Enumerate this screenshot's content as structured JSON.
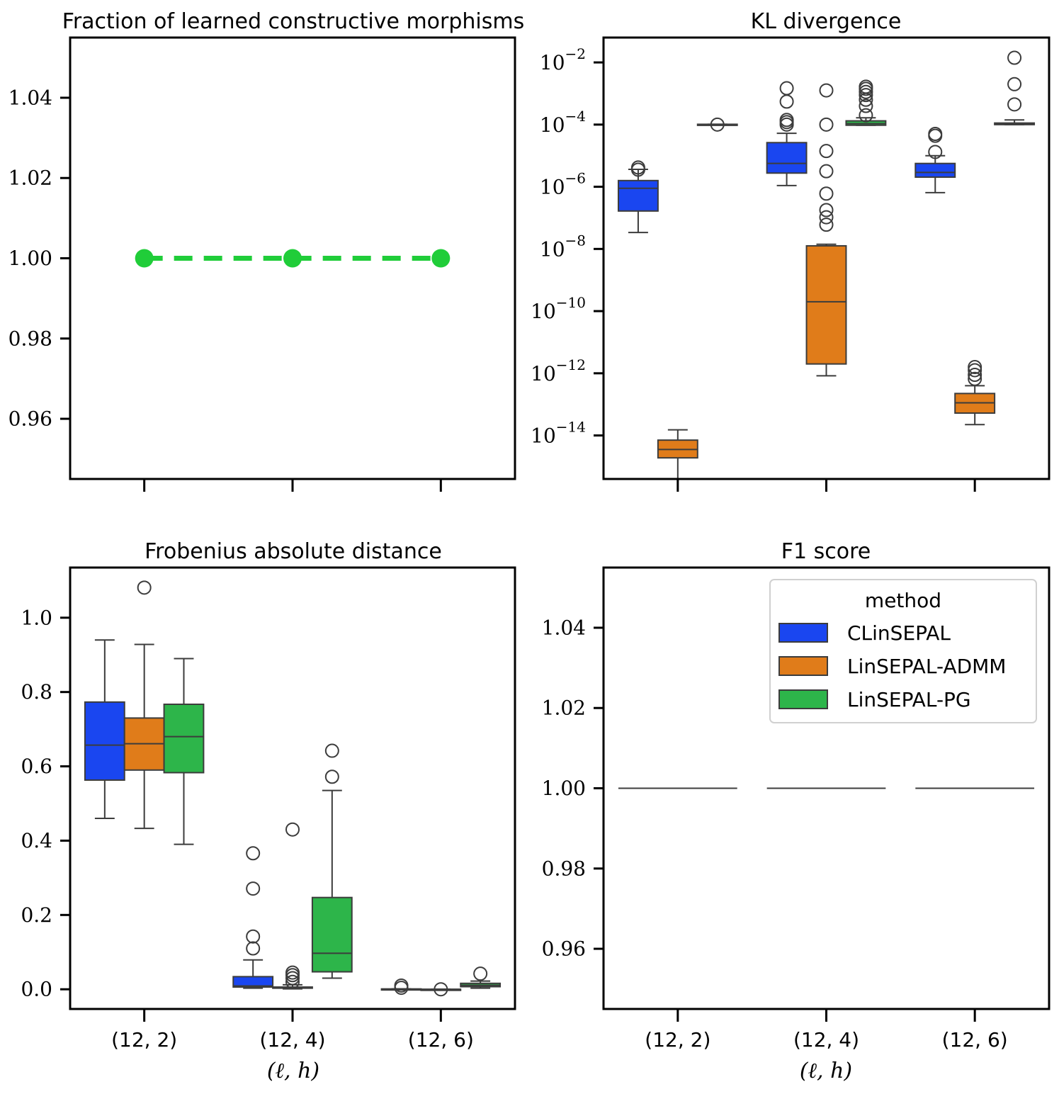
{
  "figure": {
    "colors": {
      "CLinSEPAL": "#1a46f0",
      "LinSEPAL-ADMM": "#e07c1a",
      "LinSEPAL-PG": "#2db54a",
      "line": "#20cd39",
      "edge": "#3c3c3c"
    },
    "legend": {
      "title": "method",
      "entries": [
        "CLinSEPAL",
        "LinSEPAL-ADMM",
        "LinSEPAL-PG"
      ]
    }
  },
  "chart_data": [
    {
      "id": "frac",
      "type": "line",
      "title": "Fraction of learned constructive morphisms",
      "categories": [
        "(12, 2)",
        "(12, 4)",
        "(12, 6)"
      ],
      "values": [
        1.0,
        1.0,
        1.0
      ],
      "ylim": [
        0.945,
        1.055
      ],
      "yticks": [
        0.96,
        0.98,
        1.0,
        1.02,
        1.04
      ],
      "ytick_labels": [
        "0.96",
        "0.98",
        "1.00",
        "1.02",
        "1.04"
      ],
      "xlabel": "",
      "ylabel": ""
    },
    {
      "id": "kl",
      "type": "box",
      "scale": "log",
      "title": "KL divergence",
      "categories": [
        "(12, 2)",
        "(12, 4)",
        "(12, 6)"
      ],
      "ylim_log10": [
        -15.4,
        -1.2
      ],
      "yticks_exp": [
        -14,
        -12,
        -10,
        -8,
        -6,
        -4,
        -2
      ],
      "ytick_labels": [
        [
          "10",
          "−14"
        ],
        [
          "10",
          "−12"
        ],
        [
          "10",
          "−10"
        ],
        [
          "10",
          "−8"
        ],
        [
          "10",
          "−6"
        ],
        [
          "10",
          "−4"
        ],
        [
          "10",
          "−2"
        ]
      ],
      "series": [
        {
          "name": "CLinSEPAL",
          "boxes": [
            {
              "q1": -6.78,
              "med": -6.05,
              "q3": -5.8,
              "lo": -7.47,
              "hi": -5.44,
              "fliers": [
                -5.38,
                -5.45
              ]
            },
            {
              "q1": -5.56,
              "med": -5.25,
              "q3": -4.58,
              "lo": -5.96,
              "hi": -4.28,
              "fliers": [
                -4.0,
                -3.92,
                -3.85,
                -3.26,
                -2.83
              ]
            },
            {
              "q1": -5.69,
              "med": -5.54,
              "q3": -5.25,
              "lo": -6.19,
              "hi": -5.0,
              "fliers": [
                -4.88,
                -4.36,
                -4.3
              ]
            }
          ]
        },
        {
          "name": "LinSEPAL-ADMM",
          "boxes": [
            {
              "q1": -14.72,
              "med": -14.45,
              "q3": -14.15,
              "lo": -15.4,
              "hi": -13.82,
              "fliers": []
            },
            {
              "q1": -11.7,
              "med": -9.7,
              "q3": -7.9,
              "lo": -12.08,
              "hi": -7.85,
              "fliers": [
                -7.22,
                -6.98,
                -6.75,
                -6.22,
                -5.5,
                -4.85,
                -4.0,
                -2.9
              ]
            },
            {
              "q1": -13.28,
              "med": -12.95,
              "q3": -12.65,
              "lo": -13.65,
              "hi": -12.4,
              "fliers": [
                -12.18,
                -12.05,
                -11.9,
                -11.8
              ]
            }
          ]
        },
        {
          "name": "LinSEPAL-PG",
          "boxes": [
            {
              "q1": -4.01,
              "med": -4.0,
              "q3": -3.99,
              "lo": -4.01,
              "hi": -3.99,
              "fliers": [
                -4.0
              ]
            },
            {
              "q1": -4.02,
              "med": -3.97,
              "q3": -3.88,
              "lo": -4.02,
              "hi": -3.78,
              "fliers": [
                -3.7,
                -3.4,
                -3.2,
                -3.05,
                -2.95,
                -2.85,
                -2.78
              ]
            },
            {
              "q1": -4.0,
              "med": -3.98,
              "q3": -3.95,
              "lo": -4.0,
              "hi": -3.85,
              "fliers": [
                -3.35,
                -2.7,
                -1.85
              ]
            }
          ]
        }
      ],
      "xlabel": "",
      "ylabel": ""
    },
    {
      "id": "frob",
      "type": "box",
      "title": "Frobenius absolute distance",
      "categories": [
        "(12, 2)",
        "(12, 4)",
        "(12, 6)"
      ],
      "ylim": [
        -0.053,
        1.135
      ],
      "yticks": [
        0.0,
        0.2,
        0.4,
        0.6,
        0.8,
        1.0
      ],
      "ytick_labels": [
        "0.0",
        "0.2",
        "0.4",
        "0.6",
        "0.8",
        "1.0"
      ],
      "series": [
        {
          "name": "CLinSEPAL",
          "boxes": [
            {
              "q1": 0.563,
              "med": 0.657,
              "q3": 0.773,
              "lo": 0.46,
              "hi": 0.94,
              "fliers": []
            },
            {
              "q1": 0.006,
              "med": 0.009,
              "q3": 0.034,
              "lo": 0.003,
              "hi": 0.079,
              "fliers": [
                0.11,
                0.142,
                0.271,
                0.366
              ]
            },
            {
              "q1": 0.0,
              "med": 0.0,
              "q3": 0.001,
              "lo": 0.0,
              "hi": 0.001,
              "fliers": [
                0.004,
                0.01
              ]
            }
          ]
        },
        {
          "name": "LinSEPAL-ADMM",
          "boxes": [
            {
              "q1": 0.59,
              "med": 0.661,
              "q3": 0.73,
              "lo": 0.433,
              "hi": 0.928,
              "fliers": [
                1.081
              ]
            },
            {
              "q1": 0.003,
              "med": 0.004,
              "q3": 0.006,
              "lo": 0.001,
              "hi": 0.012,
              "fliers": [
                0.02,
                0.03,
                0.038,
                0.045,
                0.43
              ]
            },
            {
              "q1": 0.0,
              "med": 0.0,
              "q3": 0.0,
              "lo": 0.0,
              "hi": 0.0,
              "fliers": [
                0.0
              ]
            }
          ]
        },
        {
          "name": "LinSEPAL-PG",
          "boxes": [
            {
              "q1": 0.583,
              "med": 0.68,
              "q3": 0.767,
              "lo": 0.39,
              "hi": 0.89,
              "fliers": []
            },
            {
              "q1": 0.047,
              "med": 0.097,
              "q3": 0.247,
              "lo": 0.03,
              "hi": 0.535,
              "fliers": [
                0.572,
                0.642
              ]
            },
            {
              "q1": 0.007,
              "med": 0.011,
              "q3": 0.016,
              "lo": 0.003,
              "hi": 0.022,
              "fliers": [
                0.042
              ]
            }
          ]
        }
      ],
      "xlabel": "(ℓ, h)",
      "ylabel": ""
    },
    {
      "id": "f1",
      "type": "box",
      "title": "F1 score",
      "categories": [
        "(12, 2)",
        "(12, 4)",
        "(12, 6)"
      ],
      "ylim": [
        0.945,
        1.055
      ],
      "yticks": [
        0.96,
        0.98,
        1.0,
        1.02,
        1.04
      ],
      "ytick_labels": [
        "0.96",
        "0.98",
        "1.00",
        "1.02",
        "1.04"
      ],
      "values": [
        1.0,
        1.0,
        1.0
      ],
      "legend": "top-right",
      "xlabel": "(ℓ, h)",
      "ylabel": ""
    }
  ]
}
